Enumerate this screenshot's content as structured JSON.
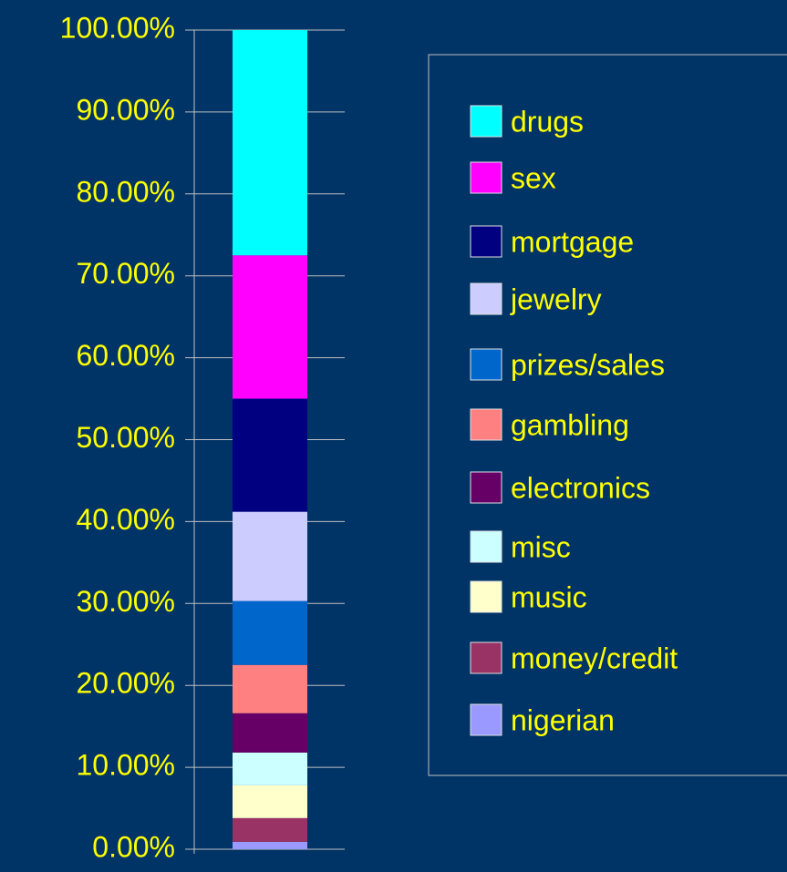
{
  "chart_data": {
    "type": "stacked-bar",
    "categories": [
      null
    ],
    "series": [
      {
        "name": "drugs",
        "color": "#00ffff",
        "values": [
          27.5
        ]
      },
      {
        "name": "sex",
        "color": "#ff00ff",
        "values": [
          17.5
        ]
      },
      {
        "name": "mortgage",
        "color": "#000080",
        "values": [
          13.8
        ]
      },
      {
        "name": "jewelry",
        "color": "#ccccff",
        "values": [
          10.9
        ]
      },
      {
        "name": "prizes/sales",
        "color": "#0066cc",
        "values": [
          7.8
        ]
      },
      {
        "name": "gambling",
        "color": "#ff8080",
        "values": [
          5.9
        ]
      },
      {
        "name": "electronics",
        "color": "#660066",
        "values": [
          4.8
        ]
      },
      {
        "name": "misc",
        "color": "#ccffff",
        "values": [
          4.0
        ]
      },
      {
        "name": "music",
        "color": "#ffffcc",
        "values": [
          4.0
        ]
      },
      {
        "name": "money/credit",
        "color": "#993366",
        "values": [
          2.9
        ]
      },
      {
        "name": "nigerian",
        "color": "#9999ff",
        "values": [
          0.9
        ]
      }
    ],
    "ylim": [
      0,
      100
    ],
    "yticks": [
      {
        "value": 0,
        "label": "0.00%"
      },
      {
        "value": 10,
        "label": "10.00%"
      },
      {
        "value": 20,
        "label": "20.00%"
      },
      {
        "value": 30,
        "label": "30.00%"
      },
      {
        "value": 40,
        "label": "40.00%"
      },
      {
        "value": 50,
        "label": "50.00%"
      },
      {
        "value": 60,
        "label": "60.00%"
      },
      {
        "value": 70,
        "label": "70.00%"
      },
      {
        "value": 80,
        "label": "80.00%"
      },
      {
        "value": 90,
        "label": "90.00%"
      },
      {
        "value": 100,
        "label": "100.00%"
      }
    ],
    "grid": true,
    "legend": "right"
  }
}
